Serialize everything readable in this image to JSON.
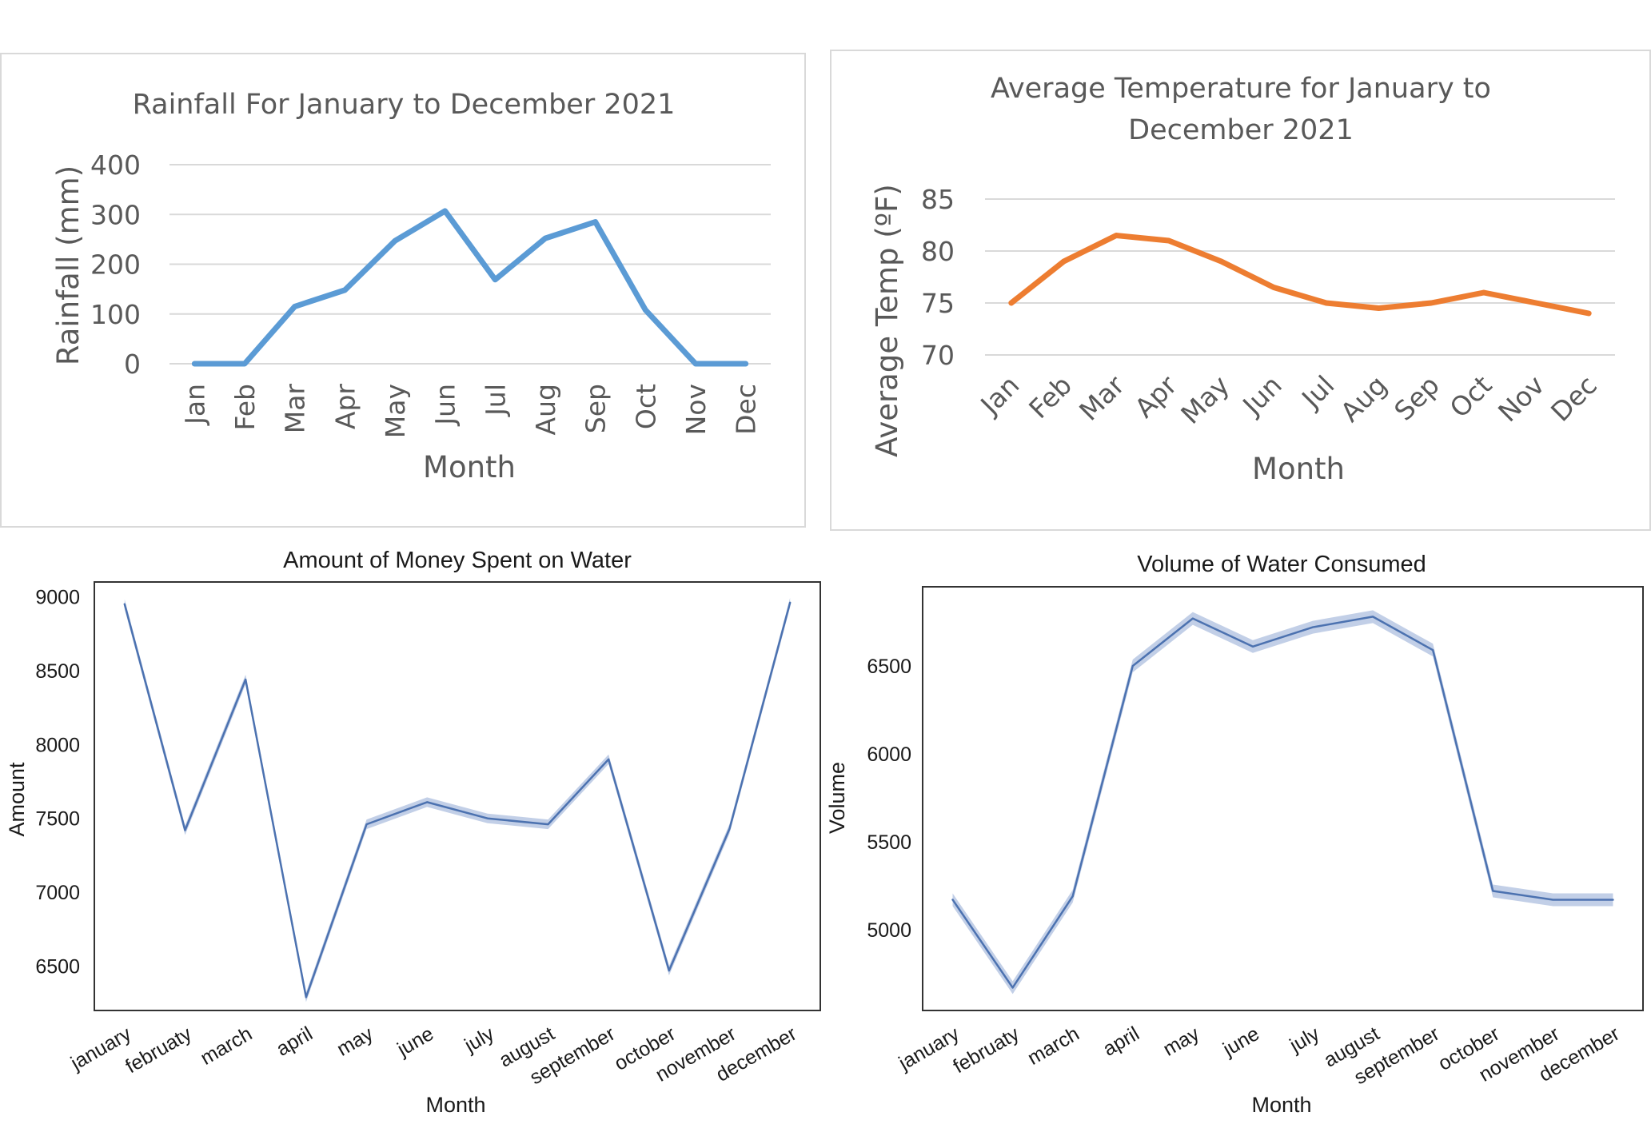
{
  "chart_data": [
    {
      "type": "line",
      "title": "Rainfall For January to December 2021",
      "xlabel": "Month",
      "ylabel": "Rainfall (mm)",
      "ylim": [
        0,
        400
      ],
      "yticks": [
        "0",
        "100",
        "200",
        "300",
        "400"
      ],
      "categories": [
        "Jan",
        "Feb",
        "Mar",
        "Apr",
        "May",
        "Jun",
        "Jul",
        "Aug",
        "Sep",
        "Oct",
        "Nov",
        "Dec"
      ],
      "values": [
        0,
        0,
        115,
        148,
        247,
        307,
        169,
        252,
        285,
        108,
        0,
        0
      ],
      "color": "#5b9bd5",
      "grid": true,
      "legend": "none"
    },
    {
      "type": "line",
      "title": "Average Temperature for January to December 2021",
      "title_lines": [
        "Average Temperature for January to",
        "December 2021"
      ],
      "xlabel": "Month",
      "ylabel": "Average Temp (ºF)",
      "ylim": [
        70,
        85
      ],
      "yticks": [
        "70",
        "75",
        "80",
        "85"
      ],
      "categories": [
        "Jan",
        "Feb",
        "Mar",
        "Apr",
        "May",
        "Jun",
        "Jul",
        "Aug",
        "Sep",
        "Oct",
        "Nov",
        "Dec"
      ],
      "values": [
        75,
        79,
        81.5,
        81,
        79,
        76.5,
        75,
        74.5,
        75,
        76,
        75,
        74
      ],
      "color": "#ed7d31",
      "grid": true,
      "legend": "none"
    },
    {
      "type": "line",
      "title": "Amount of Money Spent on Water",
      "xlabel": "Month",
      "ylabel": "Amount",
      "ylim": [
        6200,
        9100
      ],
      "yticks": [
        "6500",
        "7000",
        "7500",
        "8000",
        "8500",
        "9000"
      ],
      "categories": [
        "january",
        "februaty",
        "march",
        "april",
        "may",
        "june",
        "july",
        "august",
        "september",
        "october",
        "november",
        "december"
      ],
      "values": [
        8950,
        7420,
        8440,
        6290,
        7460,
        7610,
        7500,
        7460,
        7900,
        6470,
        7430,
        8960
      ],
      "color": "#4c72b0",
      "band_color": "#aebfdf",
      "grid": false,
      "legend": "none"
    },
    {
      "type": "line",
      "title": "Volume of Water Consumed",
      "xlabel": "Month",
      "ylabel": "Volume",
      "ylim": [
        4540,
        6950
      ],
      "yticks": [
        "5000",
        "5500",
        "6000",
        "6500"
      ],
      "categories": [
        "january",
        "februaty",
        "march",
        "april",
        "may",
        "june",
        "july",
        "august",
        "september",
        "october",
        "november",
        "december"
      ],
      "values": [
        5170,
        4670,
        5190,
        6500,
        6770,
        6610,
        6720,
        6780,
        6590,
        5220,
        5170,
        5170
      ],
      "color": "#4c72b0",
      "band_color": "#aebfdf",
      "grid": false,
      "legend": "none"
    }
  ]
}
